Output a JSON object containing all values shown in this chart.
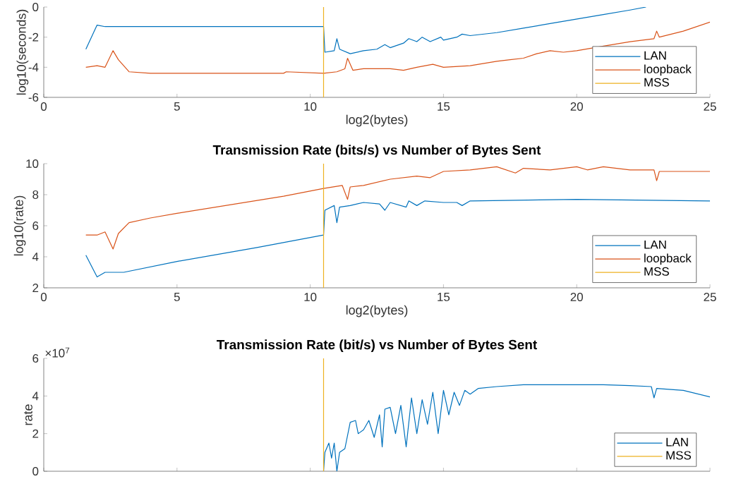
{
  "chart_data": [
    {
      "type": "line",
      "xlabel": "log2(bytes)",
      "ylabel": "log10(seconds)",
      "xlim": [
        0,
        25
      ],
      "ylim": [
        -6,
        0
      ],
      "xticks": [
        0,
        5,
        10,
        15,
        20,
        25
      ],
      "yticks": [
        -6,
        -4,
        -2,
        0
      ],
      "legend": "bottom right",
      "series": [
        {
          "name": "LAN",
          "color": "#0072bd",
          "x": [
            1.58,
            2.0,
            2.3,
            4,
            6,
            8,
            10.5,
            10.55,
            10.9,
            11.0,
            11.1,
            11.5,
            12,
            12.5,
            12.8,
            13,
            13.5,
            13.7,
            14,
            14.2,
            14.5,
            14.9,
            15,
            15.5,
            15.7,
            16,
            17,
            18,
            19,
            20,
            21,
            22,
            22.6
          ],
          "values": [
            -2.8,
            -1.2,
            -1.3,
            -1.3,
            -1.3,
            -1.3,
            -1.3,
            -3.0,
            -2.9,
            -2.1,
            -2.8,
            -3.1,
            -2.9,
            -2.8,
            -2.5,
            -2.7,
            -2.4,
            -2.1,
            -2.3,
            -2.0,
            -2.3,
            -2.0,
            -2.2,
            -2.0,
            -1.8,
            -1.9,
            -1.7,
            -1.4,
            -1.1,
            -0.8,
            -0.5,
            -0.2,
            0
          ]
        },
        {
          "name": "loopback",
          "color": "#d95319",
          "x": [
            1.58,
            2.0,
            2.3,
            2.6,
            2.8,
            3.2,
            4,
            5,
            9,
            9.1,
            10.5,
            11,
            11.3,
            11.4,
            11.6,
            12,
            13,
            13.5,
            14,
            14.6,
            15,
            16,
            17,
            17.5,
            18,
            18.5,
            19,
            19.5,
            20,
            21,
            22,
            22.9,
            23.0,
            23.1,
            24,
            25
          ],
          "values": [
            -4.0,
            -3.9,
            -4.0,
            -2.9,
            -3.5,
            -4.3,
            -4.4,
            -4.4,
            -4.4,
            -4.3,
            -4.4,
            -4.3,
            -4.1,
            -3.4,
            -4.2,
            -4.1,
            -4.1,
            -4.2,
            -4.0,
            -3.8,
            -4.0,
            -3.9,
            -3.6,
            -3.5,
            -3.4,
            -3.1,
            -2.9,
            -3.0,
            -2.9,
            -2.6,
            -2.3,
            -2.1,
            -1.6,
            -2.0,
            -1.6,
            -1.0
          ]
        },
        {
          "name": "MSS",
          "color": "#edb120",
          "x": [
            10.5,
            10.5
          ],
          "values": [
            -6,
            0
          ]
        }
      ]
    },
    {
      "type": "line",
      "title": "Transmission Rate (bits/s) vs Number of Bytes Sent",
      "xlabel": "log2(bytes)",
      "ylabel": "log10(rate)",
      "xlim": [
        0,
        25
      ],
      "ylim": [
        2,
        10
      ],
      "xticks": [
        0,
        5,
        10,
        15,
        20,
        25
      ],
      "yticks": [
        2,
        4,
        6,
        8,
        10
      ],
      "legend": "bottom right",
      "series": [
        {
          "name": "LAN",
          "color": "#0072bd",
          "x": [
            1.58,
            2.0,
            2.3,
            3,
            5,
            8,
            10.5,
            10.55,
            10.9,
            11.0,
            11.1,
            11.5,
            12,
            12.6,
            12.8,
            13,
            13.6,
            13.7,
            14,
            14.3,
            15,
            15.5,
            15.7,
            16,
            20,
            25
          ],
          "values": [
            4.1,
            2.7,
            3.0,
            3.0,
            3.7,
            4.6,
            5.4,
            7.0,
            7.3,
            6.2,
            7.2,
            7.3,
            7.5,
            7.4,
            7.0,
            7.5,
            7.2,
            7.6,
            7.3,
            7.6,
            7.5,
            7.5,
            7.3,
            7.6,
            7.7,
            7.6
          ]
        },
        {
          "name": "loopback",
          "color": "#d95319",
          "x": [
            1.58,
            2.0,
            2.3,
            2.6,
            2.8,
            3.2,
            4,
            5,
            9,
            10.5,
            11.2,
            11.4,
            11.5,
            12,
            13,
            14,
            14.5,
            15,
            16,
            17,
            17.7,
            18,
            19,
            19.5,
            20,
            20.4,
            21,
            22,
            22.9,
            23.0,
            23.1,
            25
          ],
          "values": [
            5.4,
            5.4,
            5.6,
            4.5,
            5.5,
            6.2,
            6.5,
            6.8,
            7.9,
            8.4,
            8.6,
            7.7,
            8.5,
            8.6,
            9.0,
            9.2,
            9.1,
            9.5,
            9.6,
            9.8,
            9.4,
            9.7,
            9.6,
            9.7,
            9.8,
            9.6,
            9.8,
            9.6,
            9.6,
            8.9,
            9.5,
            9.5
          ]
        },
        {
          "name": "MSS",
          "color": "#edb120",
          "x": [
            10.5,
            10.5
          ],
          "values": [
            2,
            10
          ]
        }
      ]
    },
    {
      "type": "line",
      "title": "Transmission Rate (bit/s) vs Number of Bytes Sent",
      "ylabel": "rate",
      "annotations": [
        "×10$^{7}$"
      ],
      "xlim": [
        0,
        25
      ],
      "ylim": [
        0,
        6
      ],
      "xticks": [
        0,
        5,
        10,
        15,
        20,
        25
      ],
      "yticks": [
        0,
        2,
        4,
        6
      ],
      "tick_labels": "y",
      "legend": "bottom right",
      "series": [
        {
          "name": "LAN",
          "color": "#0072bd",
          "x": [
            10.5,
            10.55,
            10.7,
            10.8,
            10.9,
            11.0,
            11.1,
            11.3,
            11.5,
            11.7,
            11.8,
            12,
            12.2,
            12.4,
            12.6,
            12.7,
            12.8,
            13,
            13.2,
            13.4,
            13.6,
            13.8,
            14,
            14.2,
            14.4,
            14.6,
            14.8,
            15,
            15.2,
            15.4,
            15.6,
            15.8,
            16,
            16.3,
            17,
            18,
            20,
            21,
            22,
            22.8,
            22.9,
            23.0,
            24,
            25
          ],
          "values": [
            0,
            1.0,
            1.5,
            0.7,
            1.5,
            0,
            1.0,
            1.2,
            2.6,
            2.7,
            2.0,
            2.2,
            2.7,
            1.8,
            3.0,
            1.3,
            3.3,
            3.4,
            2.0,
            3.5,
            1.3,
            3.9,
            2.0,
            3.8,
            2.5,
            4.2,
            2.0,
            4.3,
            3.0,
            4.2,
            3.5,
            4.3,
            4.1,
            4.4,
            4.5,
            4.6,
            4.6,
            4.6,
            4.55,
            4.5,
            3.9,
            4.4,
            4.3,
            3.95
          ]
        },
        {
          "name": "MSS",
          "color": "#edb120",
          "x": [
            10.5,
            10.5
          ],
          "values": [
            0,
            6
          ]
        }
      ]
    }
  ]
}
